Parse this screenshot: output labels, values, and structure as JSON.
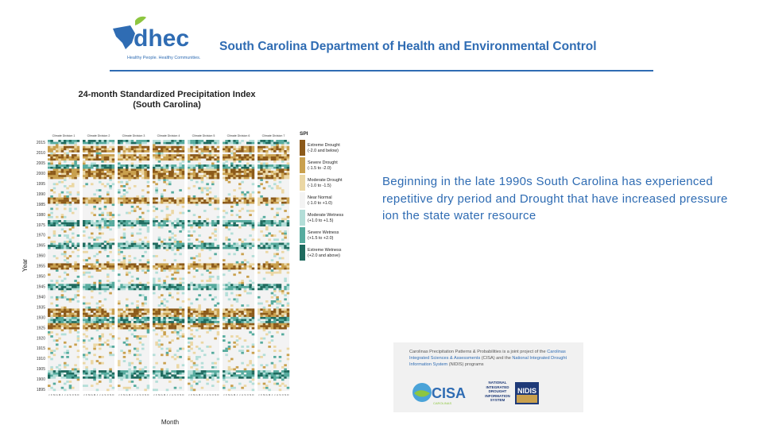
{
  "header": {
    "logo_text": "dhec",
    "logo_tagline": "Healthy People. Healthy Communities.",
    "title": "South Carolina Department of Health and Environmental Control"
  },
  "body_text": "Beginning in the late 1990s South Carolina has experienced repetitive dry period and Drought that have increased pressure ion the state water resource",
  "partner_box": {
    "line_parts": [
      {
        "text": "Carolinas Precipitation Patterns & Probabilities is a joint project of the ",
        "hl": false
      },
      {
        "text": "Carolinas Integrated Sciences & Assessments",
        "hl": true
      },
      {
        "text": " (CISA) and the ",
        "hl": false
      },
      {
        "text": "National Integrated Drought Information System",
        "hl": true
      },
      {
        "text": " (NIDIS) programs",
        "hl": false
      }
    ],
    "cisa_logo_text": "CISA",
    "cisa_logo_subtext": "CAROLINAS",
    "nidis_text": "NATIONAL INTEGRATED DROUGHT INFORMATION SYSTEM",
    "nidis_logo_text": "NIDIS"
  },
  "colors": {
    "brand_blue": "#2f6cb3",
    "dhec_green": "#8dc63f"
  },
  "chart_data": {
    "type": "heatmap",
    "title": "24-month Standardized Precipitation Index",
    "subtitle": "(South Carolina)",
    "xlabel": "Month",
    "ylabel": "Year",
    "panels": [
      "Climate Division 1",
      "Climate Division 2",
      "Climate Division 3",
      "Climate Division 4",
      "Climate Division 5",
      "Climate Division 6",
      "Climate Division 7"
    ],
    "month_ticks": [
      "J",
      "F",
      "M",
      "A",
      "M",
      "J",
      "J",
      "A",
      "S",
      "O",
      "N",
      "D"
    ],
    "year_ticks": [
      2015,
      2010,
      2005,
      2000,
      1995,
      1990,
      1985,
      1980,
      1975,
      1970,
      1965,
      1960,
      1955,
      1950,
      1945,
      1940,
      1935,
      1930,
      1925,
      1920,
      1915,
      1910,
      1905,
      1900,
      1895
    ],
    "year_range": [
      1895,
      2016
    ],
    "legend_title": "SPI",
    "legend": [
      {
        "label": "Extreme Drought",
        "range": "(-2.0 and below)",
        "color": "#8c5a1a"
      },
      {
        "label": "Severe Drought",
        "range": "(-1.5 to -2.0)",
        "color": "#c9a04e"
      },
      {
        "label": "Moderate Drought",
        "range": "(-1.0 to -1.5)",
        "color": "#ebd7a4"
      },
      {
        "label": "Near Normal",
        "range": "(-1.0 to +1.0)",
        "color": "#f3f3f3"
      },
      {
        "label": "Moderate Wetness",
        "range": "(+1.0 to +1.5)",
        "color": "#b3ded8"
      },
      {
        "label": "Severe Wetness",
        "range": "(+1.5 to +2.0)",
        "color": "#56ab9e"
      },
      {
        "label": "Extreme Wetness",
        "range": "(+2.0 and above)",
        "color": "#1f6b5f"
      }
    ],
    "legend_placement": "right",
    "dry_periods": [
      [
        1998,
        2002
      ],
      [
        2007,
        2009
      ],
      [
        2011,
        2013
      ],
      [
        1954,
        1956
      ],
      [
        1931,
        1934
      ],
      [
        1925,
        1927
      ],
      [
        1986,
        1988
      ]
    ],
    "wet_periods": [
      [
        2015,
        2016
      ],
      [
        2003,
        2004
      ],
      [
        1964,
        1966
      ],
      [
        1928,
        1930
      ],
      [
        1901,
        1904
      ],
      [
        1944,
        1946
      ],
      [
        1975,
        1977
      ]
    ]
  }
}
